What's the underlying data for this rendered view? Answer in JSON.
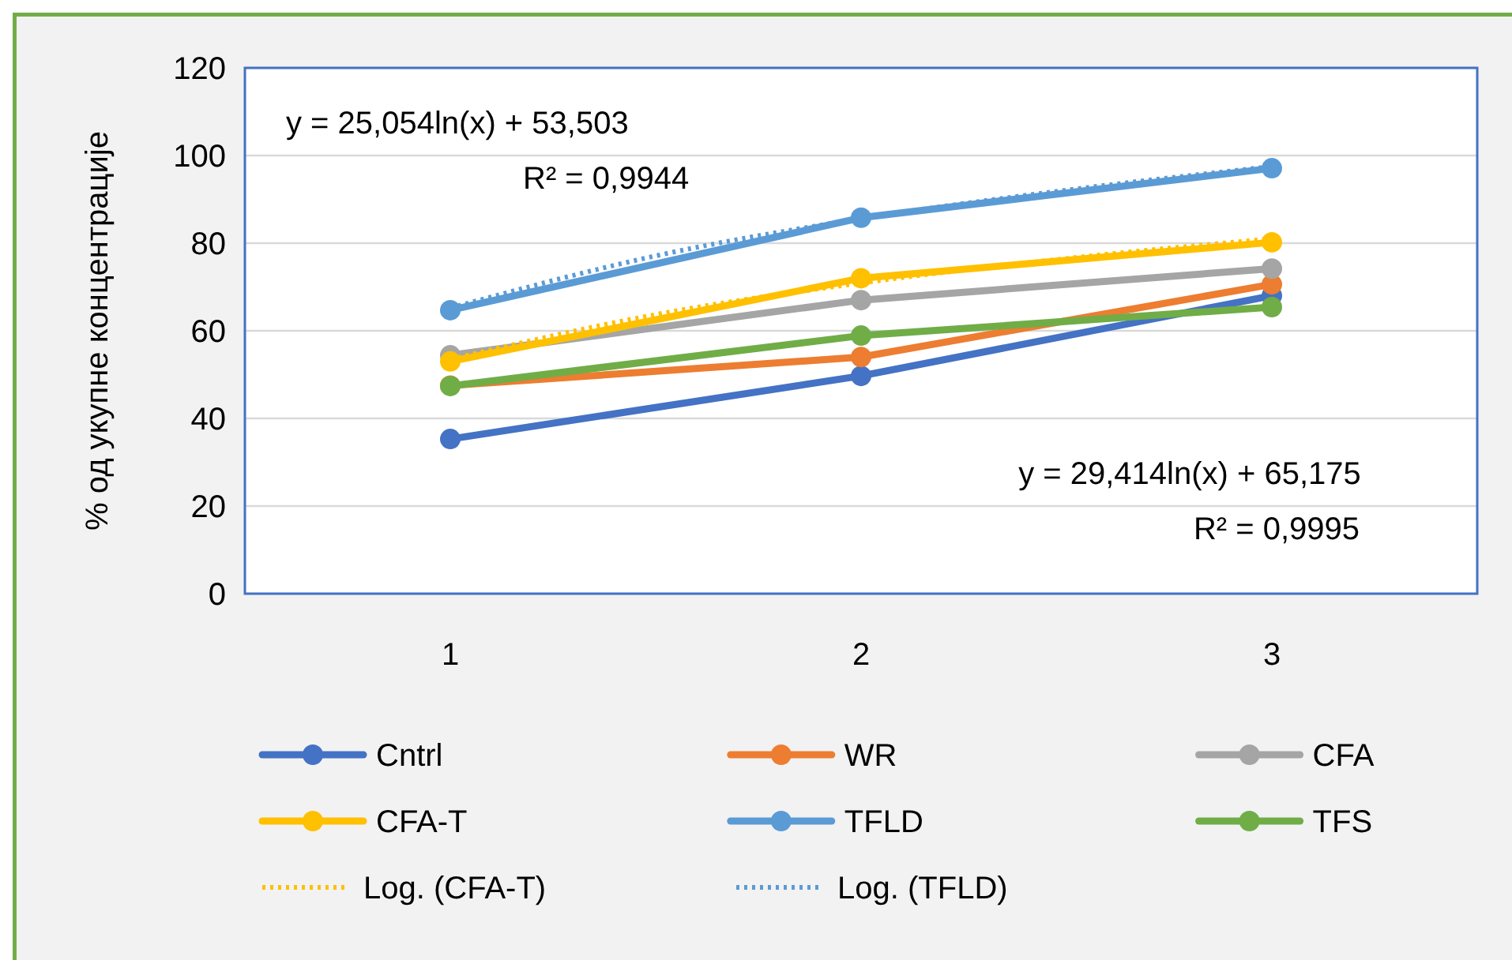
{
  "chart_data": {
    "type": "line",
    "ylabel": "% од укупне концентрације",
    "x": [
      1,
      2,
      3
    ],
    "xlim": [
      0.5,
      3.5
    ],
    "xticks": [
      1,
      2,
      3
    ],
    "ylim": [
      0,
      120
    ],
    "yticks": [
      0,
      20,
      40,
      60,
      80,
      100,
      120
    ],
    "grid": "y",
    "legend": "bottom",
    "marker": "circle",
    "line_style": "solid",
    "annotations": [
      "y = 25,054ln(x) + 53,503\nR² = 0,9944",
      "y = 29,414ln(x) + 65,175\nR² = 0,9995"
    ],
    "series": [
      {
        "name": "Cntrl",
        "color": "#4472c4",
        "values": [
          35.3,
          49.7,
          68
        ]
      },
      {
        "name": "WR",
        "color": "#ed7d31",
        "values": [
          47.5,
          54,
          70.6
        ]
      },
      {
        "name": "CFA",
        "color": "#a5a5a5",
        "values": [
          54.4,
          67,
          74.2
        ]
      },
      {
        "name": "CFA-T",
        "color": "#ffc000",
        "values": [
          53,
          72,
          80.2
        ]
      },
      {
        "name": "TFLD",
        "color": "#5b9bd5",
        "values": [
          64.7,
          85.8,
          97.1
        ]
      },
      {
        "name": "TFS",
        "color": "#70ad47",
        "values": [
          47.4,
          58.9,
          65.4
        ]
      },
      {
        "name": "Log. (CFA-T)",
        "color": "#ffc000",
        "type": "line",
        "marker": "none",
        "line_style": "dotted",
        "x": [
          1,
          1.5,
          2,
          2.5,
          3
        ],
        "values": [
          53.5,
          63.7,
          70.9,
          76.5,
          81
        ]
      },
      {
        "name": "Log. (TFLD)",
        "color": "#5b9bd5",
        "type": "line",
        "marker": "none",
        "line_style": "dotted",
        "x": [
          1,
          1.5,
          2,
          2.5,
          3
        ],
        "values": [
          65.2,
          77.1,
          85.6,
          92.1,
          97.5
        ]
      }
    ]
  }
}
